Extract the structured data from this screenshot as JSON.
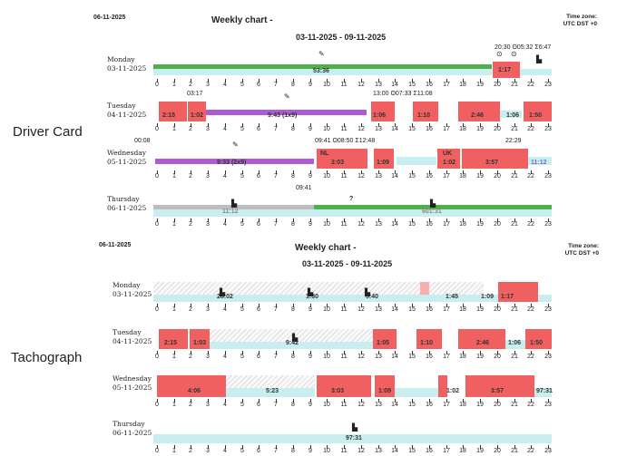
{
  "side_labels": {
    "driver_card": "Driver Card",
    "tachograph": "Tachograph"
  },
  "panels": [
    {
      "id": "driver",
      "date": "06-11-2025",
      "title": "Weekly chart -",
      "tz_line1": "Time zone:",
      "tz_line2": "UTC DST +0",
      "range": "03-11-2025 - 09-11-2025",
      "days": [
        {
          "name": "Monday",
          "date": "03-11-2025",
          "labels": [
            "53:36",
            "1:17"
          ],
          "ann": "20:30  ʘ05:32  Σ6:47"
        },
        {
          "name": "Tuesday",
          "date": "04-11-2025",
          "labels": [
            "2:15",
            "1:02",
            "9:43 (1x9)",
            "1:06",
            "1:10",
            "2:46",
            "1:06",
            "1:50"
          ],
          "ann": "13:00  ʘ07:33  Σ11:08",
          "ann2": "03:17"
        },
        {
          "name": "Wednesday",
          "date": "05-11-2025",
          "labels": [
            "9:33 (2x9)",
            "3:03",
            "1:09",
            "1:02",
            "3:57",
            "11:12"
          ],
          "ann": "09:41  ʘ08:50  Σ12:48",
          "ann2": "00:08",
          "ann3": "22:29",
          "small": [
            "NL",
            "UK"
          ]
        },
        {
          "name": "Thursday",
          "date": "06-11-2025",
          "labels": [
            "11:12",
            "601:31"
          ],
          "ann": "09:41",
          "q": "?"
        }
      ]
    },
    {
      "id": "tacho",
      "date": "06-11-2025",
      "title": "Weekly chart -",
      "tz_line1": "Time zone:",
      "tz_line2": "UTC DST +0",
      "range": "03-11-2025 - 09-11-2025",
      "days": [
        {
          "name": "Monday",
          "date": "03-11-2025",
          "labels": [
            "28:02",
            "1:30",
            "5:40",
            "1:45",
            "1:09",
            "1:17"
          ]
        },
        {
          "name": "Tuesday",
          "date": "04-11-2025",
          "labels": [
            "2:15",
            "1:03",
            "9:42",
            "1:05",
            "1:10",
            "2:46",
            "1:06",
            "1:50"
          ]
        },
        {
          "name": "Wednesday",
          "date": "05-11-2025",
          "labels": [
            "4:06",
            "5:23",
            "3:03",
            "1:09",
            "1:02",
            "3:57",
            "97:31"
          ]
        },
        {
          "name": "Thursday",
          "date": "06-11-2025",
          "labels": [
            "97:31"
          ]
        }
      ]
    }
  ],
  "axis_hours": [
    "0",
    "1",
    "2",
    "3",
    "4",
    "5",
    "6",
    "7",
    "8",
    "9",
    "10",
    "11",
    "12",
    "13",
    "14",
    "15",
    "16",
    "17",
    "18",
    "19",
    "20",
    "21",
    "22",
    "23"
  ],
  "colors": {
    "drive": "#f06060",
    "rest": "#c9eef0",
    "work": "#b05ad6",
    "card": "#4db04a"
  }
}
